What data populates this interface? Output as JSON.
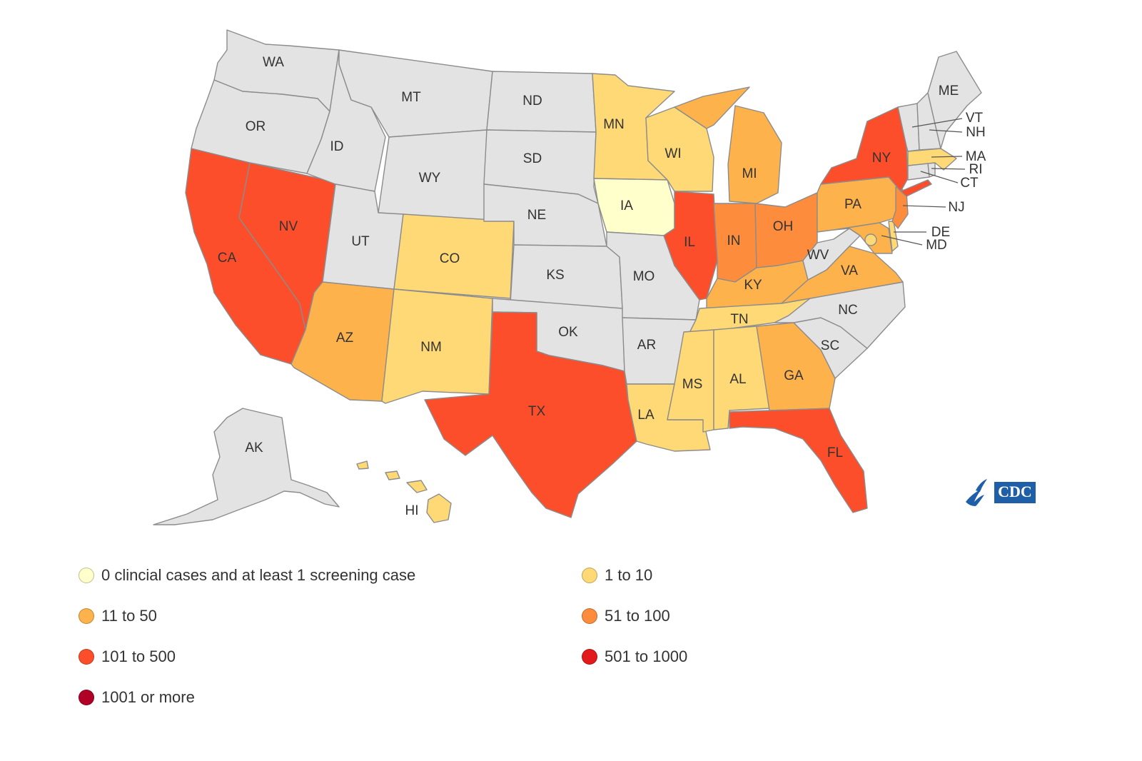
{
  "colors": {
    "none": "#e3e3e3",
    "screening_only": "#ffffcc",
    "1_10": "#fed976",
    "11_50": "#feb24c",
    "51_100": "#fd8d3c",
    "101_500": "#fc4e2a",
    "501_1000": "#e31a1c",
    "1001_plus": "#b10026"
  },
  "legend": [
    {
      "key": "screening_only",
      "label": "0 clincial cases and at least 1 screening case",
      "color": "#ffffcc"
    },
    {
      "key": "1_10",
      "label": "1 to 10",
      "color": "#fed976"
    },
    {
      "key": "11_50",
      "label": "11 to 50",
      "color": "#feb24c"
    },
    {
      "key": "51_100",
      "label": "51 to 100",
      "color": "#fd8d3c"
    },
    {
      "key": "101_500",
      "label": "101 to 500",
      "color": "#fc4e2a"
    },
    {
      "key": "501_1000",
      "label": "501 to 1000",
      "color": "#e31a1c"
    },
    {
      "key": "1001_plus",
      "label": "1001 or more",
      "color": "#b10026"
    }
  ],
  "states": {
    "WA": {
      "label": "WA",
      "category": "none"
    },
    "OR": {
      "label": "OR",
      "category": "none"
    },
    "CA": {
      "label": "CA",
      "category": "101_500"
    },
    "NV": {
      "label": "NV",
      "category": "101_500"
    },
    "ID": {
      "label": "ID",
      "category": "none"
    },
    "MT": {
      "label": "MT",
      "category": "none"
    },
    "WY": {
      "label": "WY",
      "category": "none"
    },
    "UT": {
      "label": "UT",
      "category": "none"
    },
    "AZ": {
      "label": "AZ",
      "category": "11_50"
    },
    "CO": {
      "label": "CO",
      "category": "1_10"
    },
    "NM": {
      "label": "NM",
      "category": "1_10"
    },
    "ND": {
      "label": "ND",
      "category": "none"
    },
    "SD": {
      "label": "SD",
      "category": "none"
    },
    "NE": {
      "label": "NE",
      "category": "none"
    },
    "KS": {
      "label": "KS",
      "category": "none"
    },
    "OK": {
      "label": "OK",
      "category": "none"
    },
    "TX": {
      "label": "TX",
      "category": "101_500"
    },
    "MN": {
      "label": "MN",
      "category": "1_10"
    },
    "IA": {
      "label": "IA",
      "category": "screening_only"
    },
    "MO": {
      "label": "MO",
      "category": "none"
    },
    "AR": {
      "label": "AR",
      "category": "none"
    },
    "LA": {
      "label": "LA",
      "category": "1_10"
    },
    "WI": {
      "label": "WI",
      "category": "1_10"
    },
    "IL": {
      "label": "IL",
      "category": "101_500"
    },
    "MI": {
      "label": "MI",
      "category": "11_50"
    },
    "IN": {
      "label": "IN",
      "category": "51_100"
    },
    "OH": {
      "label": "OH",
      "category": "51_100"
    },
    "KY": {
      "label": "KY",
      "category": "11_50"
    },
    "TN": {
      "label": "TN",
      "category": "1_10"
    },
    "MS": {
      "label": "MS",
      "category": "1_10"
    },
    "AL": {
      "label": "AL",
      "category": "1_10"
    },
    "GA": {
      "label": "GA",
      "category": "11_50"
    },
    "FL": {
      "label": "FL",
      "category": "101_500"
    },
    "SC": {
      "label": "SC",
      "category": "none"
    },
    "NC": {
      "label": "NC",
      "category": "none"
    },
    "VA": {
      "label": "VA",
      "category": "11_50"
    },
    "WV": {
      "label": "WV",
      "category": "none"
    },
    "PA": {
      "label": "PA",
      "category": "11_50"
    },
    "NY": {
      "label": "NY",
      "category": "101_500"
    },
    "NJ": {
      "label": "NJ",
      "category": "51_100"
    },
    "DE": {
      "label": "DE",
      "category": "1_10"
    },
    "MD": {
      "label": "MD",
      "category": "11_50"
    },
    "DC": {
      "label": "",
      "category": "1_10"
    },
    "CT": {
      "label": "CT",
      "category": "none"
    },
    "RI": {
      "label": "RI",
      "category": "none"
    },
    "MA": {
      "label": "MA",
      "category": "1_10"
    },
    "VT": {
      "label": "VT",
      "category": "none"
    },
    "NH": {
      "label": "NH",
      "category": "none"
    },
    "ME": {
      "label": "ME",
      "category": "none"
    },
    "AK": {
      "label": "AK",
      "category": "none"
    },
    "HI": {
      "label": "HI",
      "category": "1_10"
    }
  },
  "logo": {
    "text": "CDC"
  }
}
